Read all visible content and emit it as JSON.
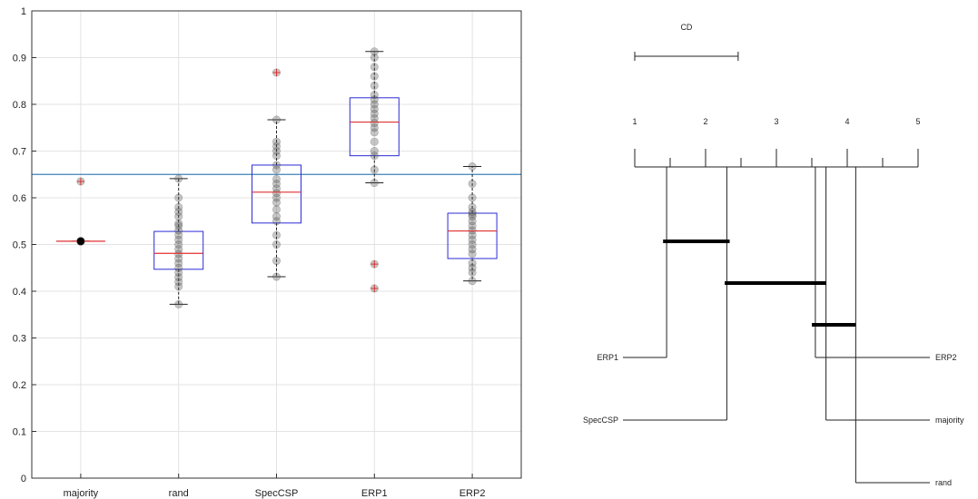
{
  "chart_data": [
    {
      "type": "box",
      "categories": [
        "majority",
        "rand",
        "SpecCSP",
        "ERP1",
        "ERP2"
      ],
      "ylim": [
        0,
        1
      ],
      "yticks": [
        0,
        0.1,
        0.2,
        0.3,
        0.4,
        0.5,
        0.6,
        0.7,
        0.8,
        0.9,
        1
      ],
      "ytick_labels": [
        "0",
        "0.1",
        "0.2",
        "0.3",
        "0.4",
        "0.5",
        "0.6",
        "0.7",
        "0.8",
        "0.9",
        "1"
      ],
      "grid": true,
      "reference_line": 0.65,
      "boxes": [
        {
          "name": "majority",
          "q1": 0.507,
          "median": 0.507,
          "q3": 0.507,
          "whisker_low": 0.507,
          "whisker_high": 0.507,
          "outliers": [
            0.635
          ],
          "points": [
            0.507,
            0.507,
            0.507,
            0.507,
            0.507,
            0.507,
            0.507,
            0.507,
            0.635
          ]
        },
        {
          "name": "rand",
          "q1": 0.447,
          "median": 0.481,
          "q3": 0.528,
          "whisker_low": 0.372,
          "whisker_high": 0.641,
          "outliers": [],
          "points": [
            0.372,
            0.41,
            0.42,
            0.43,
            0.44,
            0.45,
            0.46,
            0.47,
            0.48,
            0.49,
            0.5,
            0.51,
            0.52,
            0.53,
            0.54,
            0.545,
            0.56,
            0.57,
            0.58,
            0.6,
            0.641
          ]
        },
        {
          "name": "SpecCSP",
          "q1": 0.546,
          "median": 0.612,
          "q3": 0.67,
          "whisker_low": 0.431,
          "whisker_high": 0.767,
          "outliers": [
            0.868
          ],
          "points": [
            0.431,
            0.465,
            0.5,
            0.52,
            0.55,
            0.56,
            0.575,
            0.59,
            0.6,
            0.61,
            0.62,
            0.63,
            0.64,
            0.66,
            0.67,
            0.69,
            0.7,
            0.71,
            0.72,
            0.767,
            0.868
          ]
        },
        {
          "name": "ERP1",
          "q1": 0.69,
          "median": 0.762,
          "q3": 0.814,
          "whisker_low": 0.632,
          "whisker_high": 0.913,
          "outliers": [
            0.458,
            0.406
          ],
          "points": [
            0.406,
            0.458,
            0.632,
            0.66,
            0.69,
            0.7,
            0.72,
            0.74,
            0.75,
            0.76,
            0.77,
            0.78,
            0.79,
            0.8,
            0.81,
            0.82,
            0.84,
            0.86,
            0.88,
            0.9,
            0.913
          ]
        },
        {
          "name": "ERP2",
          "q1": 0.47,
          "median": 0.529,
          "q3": 0.567,
          "whisker_low": 0.422,
          "whisker_high": 0.667,
          "outliers": [],
          "points": [
            0.422,
            0.44,
            0.45,
            0.46,
            0.48,
            0.49,
            0.5,
            0.51,
            0.52,
            0.53,
            0.54,
            0.55,
            0.56,
            0.565,
            0.57,
            0.58,
            0.6,
            0.63,
            0.667
          ]
        }
      ]
    },
    {
      "type": "critical-difference",
      "title": "CD",
      "cd_value": 1.46,
      "axis_ticks": [
        1,
        2,
        3,
        4,
        5
      ],
      "axis_tick_labels": [
        "1",
        "2",
        "3",
        "4",
        "5"
      ],
      "ranks": [
        {
          "name": "ERP1",
          "rank": 1.45,
          "side": "left"
        },
        {
          "name": "SpecCSP",
          "rank": 2.3,
          "side": "left"
        },
        {
          "name": "ERP2",
          "rank": 3.55,
          "side": "right"
        },
        {
          "name": "majority",
          "rank": 3.7,
          "side": "right"
        },
        {
          "name": "rand",
          "rank": 4.12,
          "side": "right"
        }
      ],
      "cliques": [
        [
          1.4,
          2.34
        ],
        [
          2.27,
          3.7
        ],
        [
          3.5,
          4.12
        ]
      ]
    }
  ]
}
